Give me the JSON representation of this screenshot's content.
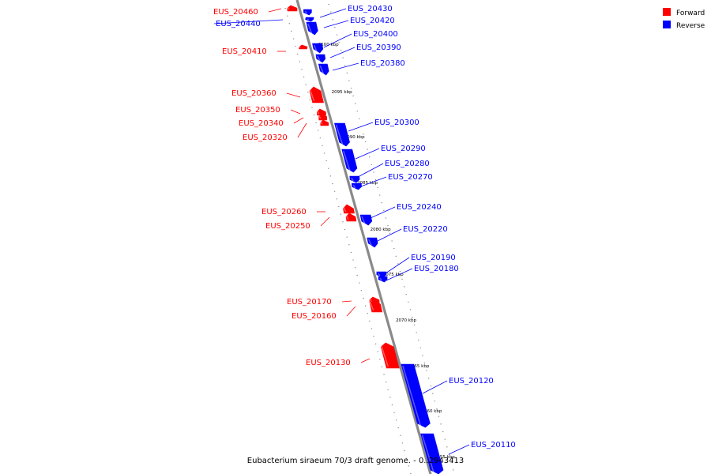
{
  "legend": [
    {
      "label": "Forward",
      "color": "#ff0000"
    },
    {
      "label": "Reverse",
      "color": "#0000ff"
    }
  ],
  "caption": "Eubacterium siraeum 70/3 draft genome. - 0..2943413",
  "axis": {
    "unit": "kbp",
    "ticks": [
      "2100 kbp",
      "2095 kbp",
      "2090 kbp",
      "2085 kbp",
      "2080 kbp",
      "2075 kbp",
      "2070 kbp",
      "2065 kbp",
      "2060 kbp",
      "2055 kbp"
    ]
  },
  "genes": [
    {
      "name": "EUS_20460",
      "strand": "forward"
    },
    {
      "name": "EUS_20440",
      "strand": "reverse"
    },
    {
      "name": "EUS_20430",
      "strand": "reverse"
    },
    {
      "name": "EUS_20420",
      "strand": "reverse"
    },
    {
      "name": "EUS_20410",
      "strand": "forward"
    },
    {
      "name": "EUS_20400",
      "strand": "reverse"
    },
    {
      "name": "EUS_20390",
      "strand": "reverse"
    },
    {
      "name": "EUS_20380",
      "strand": "reverse"
    },
    {
      "name": "EUS_20360",
      "strand": "forward"
    },
    {
      "name": "EUS_20350",
      "strand": "forward"
    },
    {
      "name": "EUS_20340",
      "strand": "forward"
    },
    {
      "name": "EUS_20320",
      "strand": "forward"
    },
    {
      "name": "EUS_20300",
      "strand": "reverse"
    },
    {
      "name": "EUS_20290",
      "strand": "reverse"
    },
    {
      "name": "EUS_20280",
      "strand": "reverse"
    },
    {
      "name": "EUS_20270",
      "strand": "reverse"
    },
    {
      "name": "EUS_20260",
      "strand": "forward"
    },
    {
      "name": "EUS_20250",
      "strand": "forward"
    },
    {
      "name": "EUS_20240",
      "strand": "reverse"
    },
    {
      "name": "EUS_20220",
      "strand": "reverse"
    },
    {
      "name": "EUS_20190",
      "strand": "reverse"
    },
    {
      "name": "EUS_20180",
      "strand": "reverse"
    },
    {
      "name": "EUS_20170",
      "strand": "forward"
    },
    {
      "name": "EUS_20160",
      "strand": "forward"
    },
    {
      "name": "EUS_20130",
      "strand": "forward"
    },
    {
      "name": "EUS_20120",
      "strand": "reverse"
    },
    {
      "name": "EUS_20110",
      "strand": "reverse"
    }
  ]
}
